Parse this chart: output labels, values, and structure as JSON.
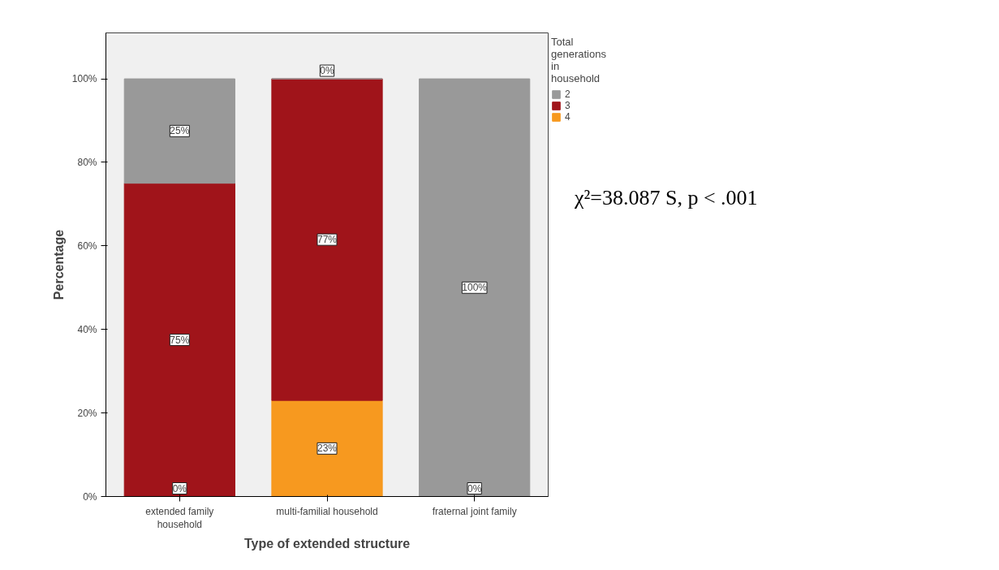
{
  "chart_data": {
    "type": "bar",
    "stacked": true,
    "xlabel": "Type of extended structure",
    "ylabel": "Percentage",
    "legend_title": "Total generations in household",
    "legend": "top right",
    "categories": [
      "extended family household",
      "multi-familial household",
      "fraternal joint family"
    ],
    "series": [
      {
        "name": "4",
        "color": "#f7991f",
        "values": [
          0,
          23,
          null
        ],
        "value_labels": [
          "0%",
          "23%",
          null
        ]
      },
      {
        "name": "3",
        "color": "#a0141a",
        "values": [
          75,
          77,
          0
        ],
        "value_labels": [
          "75%",
          "77%",
          "0%"
        ]
      },
      {
        "name": "2",
        "color": "#999999",
        "values": [
          25,
          0,
          100
        ],
        "value_labels": [
          "25%",
          "0%",
          "100%"
        ]
      }
    ],
    "ylim": [
      0,
      111
    ],
    "yticks": [
      {
        "value": 0,
        "label": "0%"
      },
      {
        "value": 20,
        "label": "20%"
      },
      {
        "value": 40,
        "label": "40%"
      },
      {
        "value": 60,
        "label": "60%"
      },
      {
        "value": 80,
        "label": "80%"
      },
      {
        "value": 100,
        "label": "100%"
      }
    ],
    "grid": false,
    "annotations": [
      "χ²=38.087 S, p < .001"
    ]
  }
}
